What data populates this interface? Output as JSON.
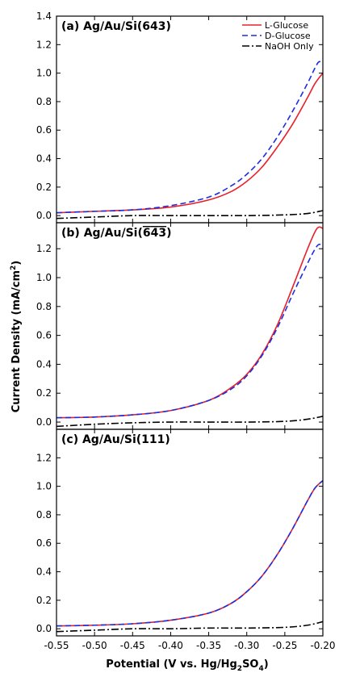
{
  "chart_data": {
    "type": "line",
    "xlabel": "Potential (V vs. Hg/Hg",
    "xlabel_sub": "2",
    "xlabel_mid": "SO",
    "xlabel_sub2": "4",
    "xlabel_end": ")",
    "ylabel": "Current Density (mA/cm",
    "ylabel_sup": "2",
    "ylabel_end": ")",
    "xlim": [
      -0.55,
      -0.2
    ],
    "x_ticks": [
      -0.55,
      -0.5,
      -0.45,
      -0.4,
      -0.35,
      -0.3,
      -0.25,
      -0.2
    ],
    "x_tick_labels": [
      "-0.55",
      "-0.50",
      "-0.45",
      "-0.40",
      "-0.35",
      "-0.30",
      "-0.25",
      "-0.20"
    ],
    "legend": {
      "placement": "top-right",
      "entries": [
        {
          "name": "L-Glucose",
          "color": "#e8202a",
          "dash": "solid"
        },
        {
          "name": "D-Glucose",
          "color": "#1c2ee0",
          "dash": "dashed"
        },
        {
          "name": "NaOH Only",
          "color": "#000000",
          "dash": "dashdot"
        }
      ]
    },
    "panels": [
      {
        "title": "(a) Ag/Au/Si(643)",
        "ylim": [
          -0.05,
          1.4
        ],
        "y_ticks": [
          0.0,
          0.2,
          0.4,
          0.6,
          0.8,
          1.0,
          1.2,
          1.4
        ],
        "y_tick_labels": [
          "0.0",
          "0.2",
          "0.4",
          "0.6",
          "0.8",
          "1.0",
          "1.2",
          "1.4"
        ],
        "series": [
          {
            "name": "L-Glucose",
            "x": [
              -0.55,
              -0.5,
              -0.45,
              -0.4,
              -0.35,
              -0.32,
              -0.3,
              -0.28,
              -0.26,
              -0.24,
              -0.22,
              -0.21,
              -0.2
            ],
            "y": [
              0.02,
              0.03,
              0.04,
              0.06,
              0.11,
              0.17,
              0.24,
              0.34,
              0.48,
              0.64,
              0.83,
              0.93,
              1.0
            ]
          },
          {
            "name": "D-Glucose",
            "x": [
              -0.55,
              -0.5,
              -0.45,
              -0.4,
              -0.35,
              -0.32,
              -0.3,
              -0.28,
              -0.26,
              -0.24,
              -0.22,
              -0.21,
              -0.205,
              -0.2
            ],
            "y": [
              0.02,
              0.03,
              0.04,
              0.07,
              0.13,
              0.21,
              0.29,
              0.4,
              0.55,
              0.73,
              0.93,
              1.04,
              1.08,
              1.07
            ]
          },
          {
            "name": "NaOH Only",
            "x": [
              -0.55,
              -0.5,
              -0.45,
              -0.4,
              -0.35,
              -0.3,
              -0.25,
              -0.22,
              -0.2
            ],
            "y": [
              -0.02,
              -0.01,
              0.0,
              0.0,
              0.0,
              0.0,
              0.005,
              0.015,
              0.035
            ]
          }
        ]
      },
      {
        "title": "(b) Ag/Au/Si(",
        "title_overbar_1": "6",
        "title_overbar_2": "4",
        "title_overbar_3": "3",
        "title_end": ")",
        "ylim": [
          -0.05,
          1.38
        ],
        "y_ticks": [
          0.0,
          0.2,
          0.4,
          0.6,
          0.8,
          1.0,
          1.2
        ],
        "y_tick_labels": [
          "0.0",
          "0.2",
          "0.4",
          "0.6",
          "0.8",
          "1.0",
          "1.2"
        ],
        "series": [
          {
            "name": "L-Glucose",
            "x": [
              -0.55,
              -0.5,
              -0.45,
              -0.4,
              -0.35,
              -0.32,
              -0.3,
              -0.28,
              -0.26,
              -0.24,
              -0.22,
              -0.21,
              -0.205,
              -0.2
            ],
            "y": [
              0.03,
              0.035,
              0.05,
              0.08,
              0.15,
              0.24,
              0.33,
              0.47,
              0.67,
              0.93,
              1.2,
              1.32,
              1.35,
              1.34
            ]
          },
          {
            "name": "D-Glucose",
            "x": [
              -0.55,
              -0.5,
              -0.45,
              -0.4,
              -0.35,
              -0.32,
              -0.3,
              -0.28,
              -0.26,
              -0.24,
              -0.22,
              -0.21,
              -0.205,
              -0.2
            ],
            "y": [
              0.03,
              0.035,
              0.05,
              0.08,
              0.15,
              0.23,
              0.32,
              0.46,
              0.65,
              0.88,
              1.1,
              1.2,
              1.23,
              1.22
            ]
          },
          {
            "name": "NaOH Only",
            "x": [
              -0.55,
              -0.5,
              -0.45,
              -0.4,
              -0.35,
              -0.3,
              -0.25,
              -0.22,
              -0.2
            ],
            "y": [
              -0.03,
              -0.015,
              -0.005,
              0.0,
              0.0,
              0.0,
              0.005,
              0.02,
              0.04
            ]
          }
        ]
      },
      {
        "title": "(c) Ag/Au/Si(111)",
        "ylim": [
          -0.05,
          1.4
        ],
        "y_ticks": [
          0.0,
          0.2,
          0.4,
          0.6,
          0.8,
          1.0,
          1.2
        ],
        "y_tick_labels": [
          "0.0",
          "0.2",
          "0.4",
          "0.6",
          "0.8",
          "1.0",
          "1.2"
        ],
        "series": [
          {
            "name": "L-Glucose",
            "x": [
              -0.55,
              -0.5,
              -0.45,
              -0.4,
              -0.35,
              -0.32,
              -0.3,
              -0.28,
              -0.26,
              -0.24,
              -0.22,
              -0.21,
              -0.2
            ],
            "y": [
              0.02,
              0.025,
              0.035,
              0.06,
              0.11,
              0.18,
              0.26,
              0.37,
              0.52,
              0.7,
              0.9,
              0.99,
              1.04
            ]
          },
          {
            "name": "D-Glucose",
            "x": [
              -0.55,
              -0.5,
              -0.45,
              -0.4,
              -0.35,
              -0.32,
              -0.3,
              -0.28,
              -0.26,
              -0.24,
              -0.22,
              -0.21,
              -0.2
            ],
            "y": [
              0.02,
              0.025,
              0.035,
              0.06,
              0.11,
              0.18,
              0.26,
              0.37,
              0.52,
              0.7,
              0.9,
              0.99,
              1.04
            ]
          },
          {
            "name": "NaOH Only",
            "x": [
              -0.55,
              -0.5,
              -0.45,
              -0.4,
              -0.35,
              -0.3,
              -0.25,
              -0.22,
              -0.2
            ],
            "y": [
              -0.02,
              -0.01,
              0.0,
              0.0,
              0.005,
              0.005,
              0.01,
              0.025,
              0.05
            ]
          }
        ]
      }
    ]
  }
}
